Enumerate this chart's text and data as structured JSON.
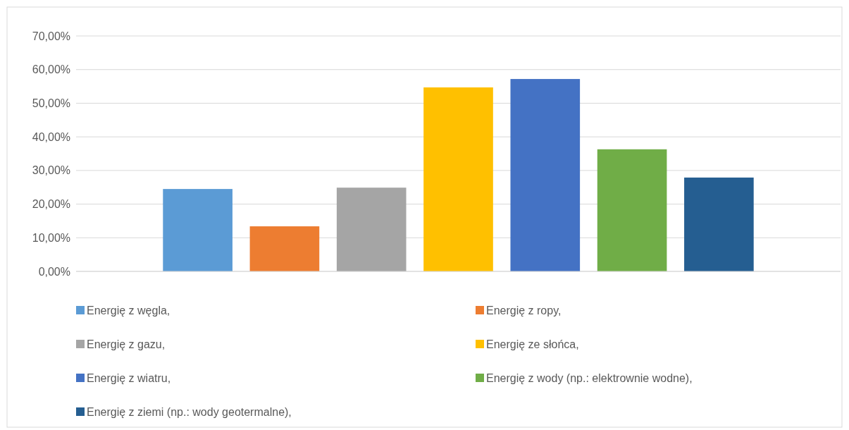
{
  "chart_data": {
    "type": "bar",
    "categories": [
      null
    ],
    "series": [
      {
        "name": "Energię z węgla,",
        "color": "#5b9bd5",
        "values": [
          24.5
        ]
      },
      {
        "name": "Energię z ropy,",
        "color": "#ed7d31",
        "values": [
          13.4
        ]
      },
      {
        "name": "Energię z gazu,",
        "color": "#a5a5a5",
        "values": [
          24.9
        ]
      },
      {
        "name": "Energię ze słońca,",
        "color": "#ffc000",
        "values": [
          54.7
        ]
      },
      {
        "name": "Energię z wiatru,",
        "color": "#4472c4",
        "values": [
          57.2
        ]
      },
      {
        "name": "Energię z wody (np.: elektrownie wodne),",
        "color": "#70ad47",
        "values": [
          36.3
        ]
      },
      {
        "name": "Energię z ziemi (np.: wody geotermalne),",
        "color": "#255e91",
        "values": [
          27.9
        ]
      }
    ],
    "ylim": [
      0,
      70
    ],
    "yticks": [
      {
        "value": 0,
        "label": "0,00%"
      },
      {
        "value": 10,
        "label": "10,00%"
      },
      {
        "value": 20,
        "label": "20,00%"
      },
      {
        "value": 30,
        "label": "30,00%"
      },
      {
        "value": 40,
        "label": "40,00%"
      },
      {
        "value": 50,
        "label": "50,00%"
      },
      {
        "value": 60,
        "label": "60,00%"
      },
      {
        "value": 70,
        "label": "70,00%"
      }
    ],
    "grid": "y",
    "legend": "bottom"
  }
}
